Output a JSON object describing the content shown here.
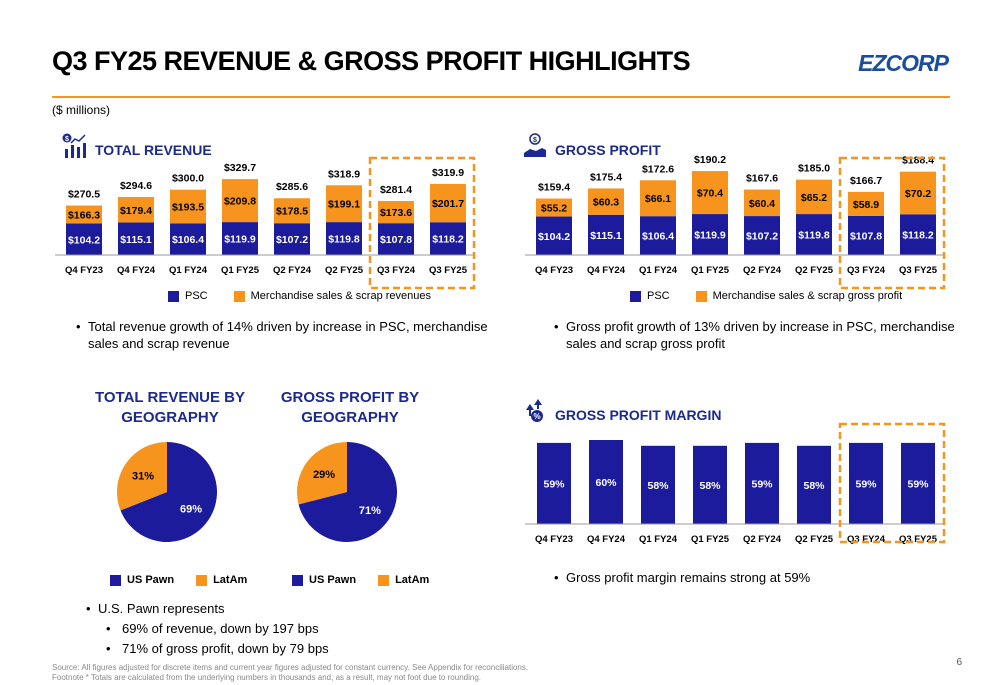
{
  "page": {
    "title": "Q3 FY25 REVENUE & GROSS PROFIT HIGHLIGHTS",
    "logo": "EZCORP",
    "units": "($ millions)",
    "page_number": "6",
    "footnote_1": "Source: All figures adjusted for discrete items and current year figures adjusted for constant currency. See Appendix for reconciliations.",
    "footnote_2": "Footnote * Totals are calculated from the underlying numbers in thousands and, as a result, may not foot due to rounding."
  },
  "colors": {
    "navy": "#1b1b9c",
    "orange": "#f7941d",
    "title_blue": "#1b2a8c",
    "highlight": "#f7941d"
  },
  "sections": {
    "total_revenue": {
      "title": "TOTAL REVENUE",
      "icon": "bar-chart-dollar-icon",
      "bullet": "Total revenue growth of 14% driven by increase in PSC, merchandise sales and scrap revenue",
      "legend": [
        "PSC",
        "Merchandise sales & scrap revenues"
      ]
    },
    "gross_profit": {
      "title": "GROSS PROFIT",
      "icon": "money-hand-icon",
      "bullet": "Gross profit growth of 13% driven by increase in PSC, merchandise sales and scrap gross profit",
      "legend": [
        "PSC",
        "Merchandise sales & scrap gross profit"
      ]
    },
    "gross_profit_margin": {
      "title": "GROSS PROFIT MARGIN",
      "icon": "percent-growth-icon",
      "bullet": "Gross profit margin remains strong at 59%"
    },
    "geography": {
      "revenue_title_1": "TOTAL REVENUE BY",
      "revenue_title_2": "GEOGRAPHY",
      "profit_title_1": "GROSS PROFIT BY",
      "profit_title_2": "GEOGRAPHY",
      "legend": [
        "US Pawn",
        "LatAm"
      ],
      "bullet_main": "U.S. Pawn represents",
      "bullet_sub_1": "69% of revenue, down by 197 bps",
      "bullet_sub_2": "71% of gross profit, down by 79 bps"
    }
  },
  "chart_data": [
    {
      "type": "bar",
      "stacked": true,
      "categories": [
        "Q4 FY23",
        "Q4 FY24",
        "Q1 FY24",
        "Q1 FY25",
        "Q2 FY24",
        "Q2 FY25",
        "Q3 FY24",
        "Q3 FY25"
      ],
      "series": [
        {
          "name": "PSC",
          "values": [
            104.2,
            115.1,
            106.4,
            119.9,
            107.2,
            119.8,
            107.8,
            118.2
          ],
          "labels": [
            "$104.2",
            "$115.1",
            "$106.4",
            "$119.9",
            "$107.2",
            "$119.8",
            "$107.8",
            "$118.2"
          ]
        },
        {
          "name": "Merchandise sales & scrap revenues",
          "values": [
            166.3,
            179.4,
            193.5,
            209.8,
            178.5,
            199.1,
            173.6,
            201.7
          ],
          "labels": [
            "$166.3",
            "$179.4",
            "$193.5",
            "$209.8",
            "$178.5",
            "$199.1",
            "$173.6",
            "$201.7"
          ]
        }
      ],
      "totals": [
        "$270.5",
        "$294.6",
        "$300.0",
        "$329.7",
        "$285.6",
        "$318.9",
        "$281.4",
        "$319.9"
      ],
      "highlight": [
        "Q3 FY24",
        "Q3 FY25"
      ],
      "ylim": [
        0,
        330
      ]
    },
    {
      "type": "bar",
      "stacked": true,
      "categories": [
        "Q4 FY23",
        "Q4 FY24",
        "Q1 FY24",
        "Q1 FY25",
        "Q2 FY24",
        "Q2 FY25",
        "Q3 FY24",
        "Q3 FY25"
      ],
      "series": [
        {
          "name": "PSC",
          "values": [
            104.2,
            115.1,
            106.4,
            119.9,
            107.2,
            119.8,
            107.8,
            118.2
          ],
          "labels": [
            "$104.2",
            "$115.1",
            "$106.4",
            "$119.9",
            "$107.2",
            "$119.8",
            "$107.8",
            "$118.2"
          ]
        },
        {
          "name": "Merchandise sales & scrap gross profit",
          "values": [
            55.2,
            60.3,
            66.1,
            70.4,
            60.4,
            65.2,
            58.9,
            70.2
          ],
          "labels": [
            "$55.2",
            "$60.3",
            "$66.1",
            "$70.4",
            "$60.4",
            "$65.2",
            "$58.9",
            "$70.2"
          ]
        }
      ],
      "totals": [
        "$159.4",
        "$175.4",
        "$172.6",
        "$190.2",
        "$167.6",
        "$185.0",
        "$166.7",
        "$188.4"
      ],
      "highlight": [
        "Q3 FY24",
        "Q3 FY25"
      ],
      "ylim": [
        0,
        190
      ]
    },
    {
      "type": "bar",
      "categories": [
        "Q4 FY23",
        "Q4 FY24",
        "Q1 FY24",
        "Q1 FY25",
        "Q2 FY24",
        "Q2 FY25",
        "Q3 FY24",
        "Q3 FY25"
      ],
      "values": [
        59,
        60,
        58,
        58,
        59,
        58,
        59,
        59
      ],
      "labels": [
        "59%",
        "60%",
        "58%",
        "58%",
        "59%",
        "58%",
        "59%",
        "59%"
      ],
      "highlight": [
        "Q3 FY24",
        "Q3 FY25"
      ],
      "ylim": [
        0,
        60
      ]
    },
    {
      "type": "pie",
      "title": "TOTAL REVENUE BY GEOGRAPHY",
      "slices": [
        {
          "name": "US Pawn",
          "value": 69,
          "label": "69%"
        },
        {
          "name": "LatAm",
          "value": 31,
          "label": "31%"
        }
      ]
    },
    {
      "type": "pie",
      "title": "GROSS PROFIT BY GEOGRAPHY",
      "slices": [
        {
          "name": "US Pawn",
          "value": 71,
          "label": "71%"
        },
        {
          "name": "LatAm",
          "value": 29,
          "label": "29%"
        }
      ]
    }
  ]
}
